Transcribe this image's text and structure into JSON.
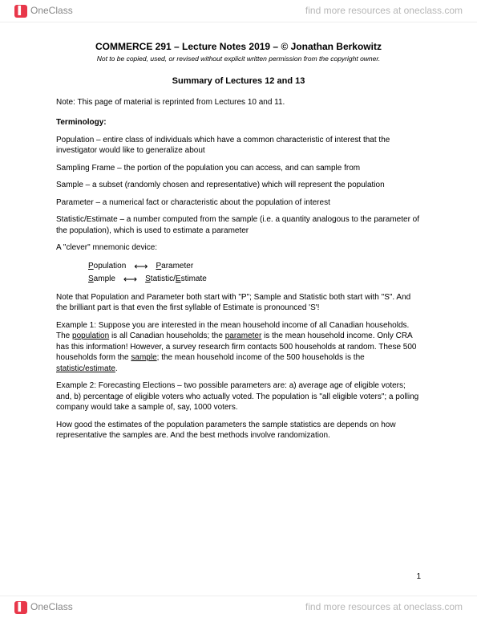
{
  "chrome": {
    "brand_text": "OneClass",
    "brand_icon_glyph": "▌",
    "find_more": "find more resources at oneclass.com"
  },
  "doc": {
    "title": "COMMERCE 291 – Lecture Notes 2019 – © Jonathan Berkowitz",
    "subtitle": "Not to be copied, used, or revised without explicit written permission from the copyright owner.",
    "section_title": "Summary of Lectures 12 and 13",
    "note_line": "Note: This page of material is reprinted from Lectures 10 and 11.",
    "terminology_header": "Terminology:",
    "terms": {
      "population": "Population – entire class of individuals which have a common characteristic of interest that the investigator would like to generalize about",
      "sampling_frame": "Sampling Frame – the portion of the population you can access, and can sample from",
      "sample": "Sample – a subset (randomly chosen and representative) which will represent the population",
      "parameter": "Parameter – a numerical fact or characteristic about the population of interest",
      "statistic": "Statistic/Estimate – a number computed from the sample (i.e. a quantity analogous to the parameter of the population), which is used to estimate a parameter"
    },
    "mnemonic_intro": "A \"clever\" mnemonic device:",
    "mnemonic": {
      "row1_left_u": "P",
      "row1_left_rest": "opulation",
      "row1_right_u": "P",
      "row1_right_rest": "arameter",
      "row2_left_u": "S",
      "row2_left_rest": "ample",
      "row2_right_u": "S",
      "row2_right_rest": "tatistic/",
      "row2_right2_u": "E",
      "row2_right2_rest": "stimate",
      "arrow": "⟷"
    },
    "mnemonic_note": "Note that Population and Parameter both start with \"P\"; Sample and Statistic both start with \"S\". And the brilliant part is that even the first syllable of Estimate is pronounced 'S'!",
    "example1_pre": "Example 1: Suppose you are interested in the mean household income of all Canadian households. The ",
    "example1_population": "population",
    "example1_mid1": " is all Canadian households; the ",
    "example1_parameter": "parameter",
    "example1_mid2": " is the mean household income. Only CRA has this information! However, a survey research firm contacts 500 households at random. These 500 households form the ",
    "example1_sample": "sample",
    "example1_mid3": "; the mean household income of the 500 households is the ",
    "example1_stat": "statistic/estimate",
    "example1_end": ".",
    "example2": "Example 2: Forecasting Elections – two possible parameters are: a) average age of eligible voters; and, b) percentage of eligible voters who actually voted. The population is \"all eligible voters\"; a polling company would take a sample of, say, 1000 voters.",
    "closing": "How good the estimates of the population parameters the sample statistics are depends on how representative the samples are. And the best methods involve randomization.",
    "page_number": "1"
  }
}
